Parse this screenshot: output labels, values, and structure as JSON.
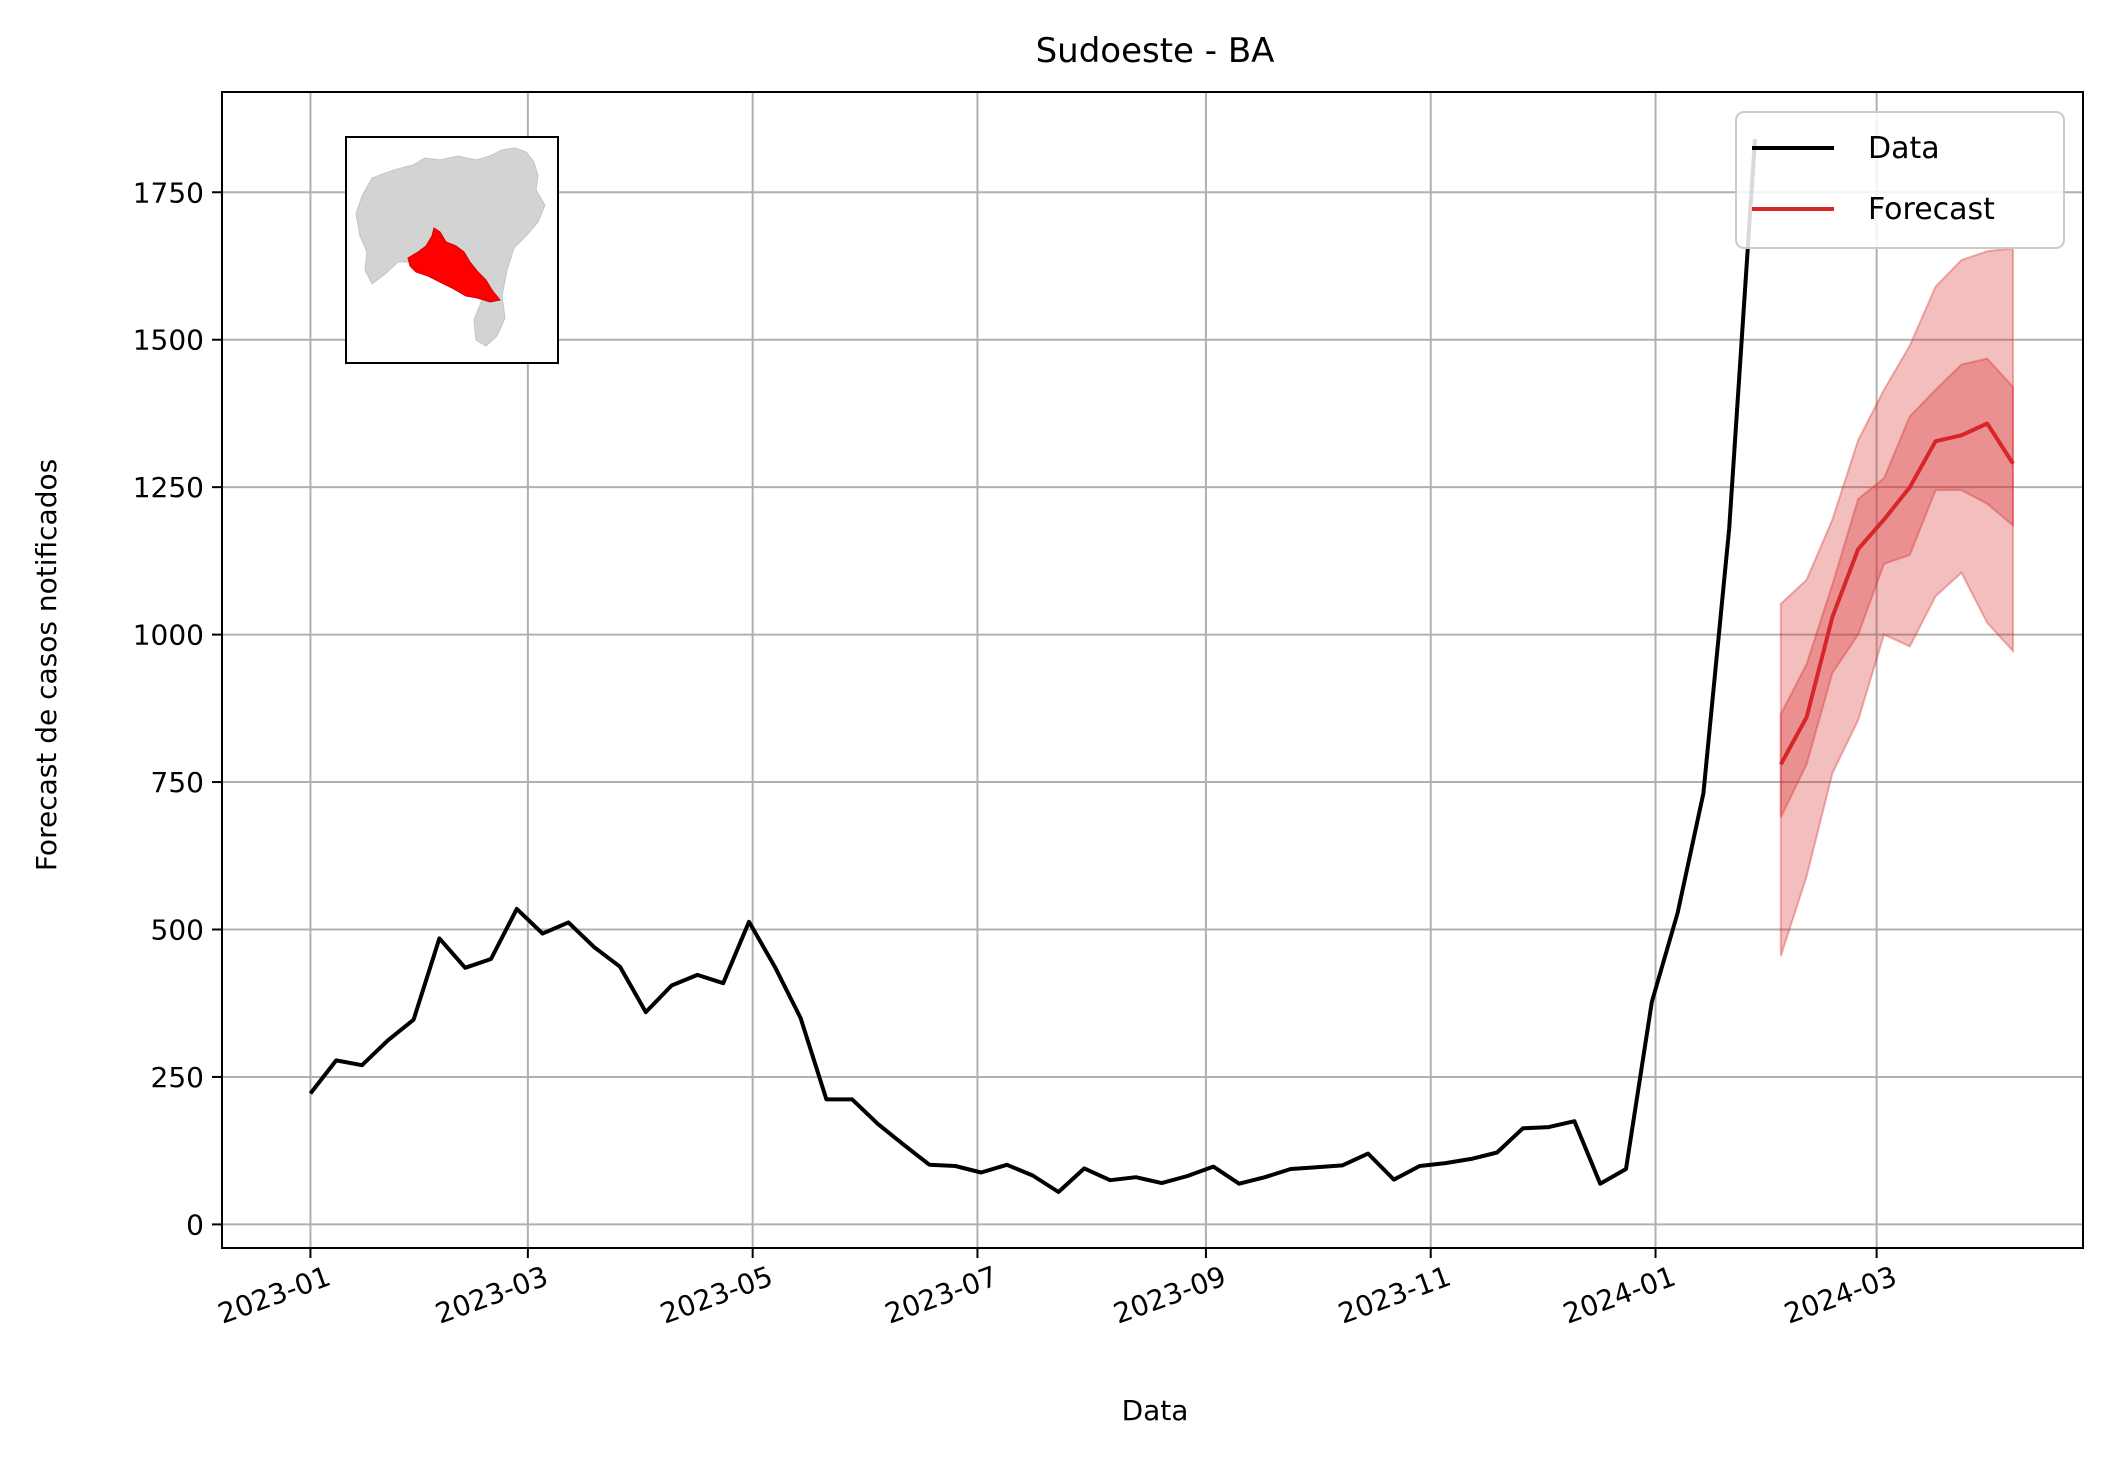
{
  "chart_data": {
    "type": "line",
    "title": "Sudoeste - BA",
    "xlabel": "Data",
    "ylabel": "Forecast de casos notificados",
    "x_tick_labels": [
      "2023-01",
      "2023-03",
      "2023-05",
      "2023-07",
      "2023-09",
      "2023-11",
      "2024-01",
      "2024-03"
    ],
    "y_ticks": [
      0,
      250,
      500,
      750,
      1000,
      1250,
      1500,
      1750
    ],
    "ylim": [
      -40,
      1920
    ],
    "xlim": [
      "2022-12-08",
      "2024-04-26"
    ],
    "grid": true,
    "legend_position": "top-right",
    "colors": {
      "data": "#000000",
      "forecast": "#d62728",
      "band": "#d62728",
      "map_region": "#ff0000",
      "map_base": "#d3d3d3"
    },
    "series": [
      {
        "name": "Data",
        "x": [
          "2023-01-01",
          "2023-01-08",
          "2023-01-15",
          "2023-01-22",
          "2023-01-29",
          "2023-02-05",
          "2023-02-12",
          "2023-02-19",
          "2023-02-26",
          "2023-03-05",
          "2023-03-12",
          "2023-03-19",
          "2023-03-26",
          "2023-04-02",
          "2023-04-09",
          "2023-04-16",
          "2023-04-23",
          "2023-04-30",
          "2023-05-07",
          "2023-05-14",
          "2023-05-21",
          "2023-05-28",
          "2023-06-04",
          "2023-06-11",
          "2023-06-18",
          "2023-06-25",
          "2023-07-02",
          "2023-07-09",
          "2023-07-16",
          "2023-07-23",
          "2023-07-30",
          "2023-08-06",
          "2023-08-13",
          "2023-08-20",
          "2023-08-27",
          "2023-09-03",
          "2023-09-10",
          "2023-09-17",
          "2023-09-24",
          "2023-10-01",
          "2023-10-08",
          "2023-10-15",
          "2023-10-22",
          "2023-10-29",
          "2023-11-05",
          "2023-11-12",
          "2023-11-19",
          "2023-11-26",
          "2023-12-03",
          "2023-12-10",
          "2023-12-17",
          "2023-12-24",
          "2023-12-31",
          "2024-01-07",
          "2024-01-14",
          "2024-01-21",
          "2024-01-28"
        ],
        "values": [
          222,
          278,
          270,
          312,
          347,
          485,
          435,
          450,
          535,
          493,
          512,
          470,
          437,
          360,
          405,
          423,
          409,
          513,
          437,
          350,
          212,
          212,
          170,
          135,
          101,
          99,
          88,
          101,
          83,
          55,
          95,
          75,
          80,
          70,
          82,
          98,
          69,
          80,
          94,
          97,
          100,
          120,
          76,
          99,
          104,
          111,
          122,
          163,
          165,
          175,
          69,
          94,
          377,
          528,
          731,
          1180,
          1840
        ]
      },
      {
        "name": "Forecast",
        "x": [
          "2024-02-04",
          "2024-02-11",
          "2024-02-18",
          "2024-02-25",
          "2024-03-03",
          "2024-03-10",
          "2024-03-17",
          "2024-03-24",
          "2024-03-31",
          "2024-04-07"
        ],
        "values": [
          780,
          860,
          1030,
          1145,
          1195,
          1250,
          1328,
          1338,
          1358,
          1290
        ],
        "inner_band": {
          "lower": [
            690,
            780,
            935,
            1000,
            1120,
            1135,
            1245,
            1245,
            1222,
            1185
          ],
          "upper": [
            865,
            950,
            1085,
            1230,
            1265,
            1370,
            1415,
            1458,
            1468,
            1420
          ]
        },
        "outer_band": {
          "lower": [
            455,
            590,
            765,
            855,
            1000,
            980,
            1065,
            1105,
            1020,
            972
          ],
          "upper": [
            1052,
            1093,
            1195,
            1330,
            1415,
            1490,
            1590,
            1635,
            1650,
            1655
          ]
        }
      }
    ]
  }
}
